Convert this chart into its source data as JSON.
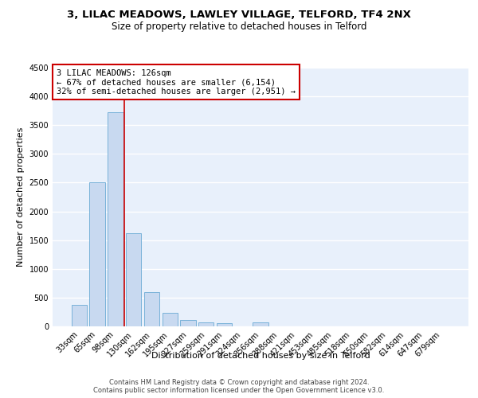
{
  "title1": "3, LILAC MEADOWS, LAWLEY VILLAGE, TELFORD, TF4 2NX",
  "title2": "Size of property relative to detached houses in Telford",
  "xlabel": "Distribution of detached houses by size in Telford",
  "ylabel": "Number of detached properties",
  "categories": [
    "33sqm",
    "65sqm",
    "98sqm",
    "130sqm",
    "162sqm",
    "195sqm",
    "227sqm",
    "259sqm",
    "291sqm",
    "324sqm",
    "356sqm",
    "388sqm",
    "421sqm",
    "453sqm",
    "485sqm",
    "518sqm",
    "550sqm",
    "582sqm",
    "614sqm",
    "647sqm",
    "679sqm"
  ],
  "values": [
    375,
    2500,
    3725,
    1625,
    600,
    240,
    110,
    65,
    50,
    0,
    75,
    0,
    0,
    0,
    0,
    0,
    0,
    0,
    0,
    0,
    0
  ],
  "bar_color": "#c8d9f0",
  "bar_edge_color": "#6aaad4",
  "highlight_index": 3,
  "vline_color": "#cc0000",
  "annotation_text": "3 LILAC MEADOWS: 126sqm\n← 67% of detached houses are smaller (6,154)\n32% of semi-detached houses are larger (2,951) →",
  "annotation_box_color": "#cc0000",
  "ylim": [
    0,
    4500
  ],
  "yticks": [
    0,
    500,
    1000,
    1500,
    2000,
    2500,
    3000,
    3500,
    4000,
    4500
  ],
  "bg_color": "#e8f0fb",
  "grid_color": "#ffffff",
  "footnote": "Contains HM Land Registry data © Crown copyright and database right 2024.\nContains public sector information licensed under the Open Government Licence v3.0.",
  "title_fontsize": 9.5,
  "subtitle_fontsize": 8.5,
  "axis_label_fontsize": 8,
  "tick_fontsize": 7,
  "footnote_fontsize": 6
}
